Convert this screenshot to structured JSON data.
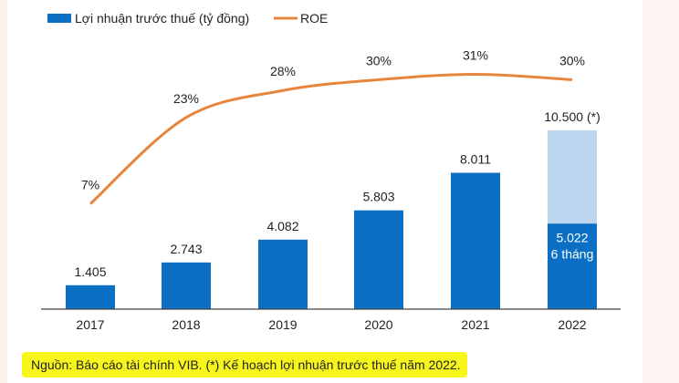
{
  "chart_data": {
    "type": "bar+line",
    "categories": [
      "2017",
      "2018",
      "2019",
      "2020",
      "2021",
      "2022"
    ],
    "series": [
      {
        "name": "Lợi nhuận trước thuế (tỷ đồng)",
        "kind": "bar",
        "color": "#0b6fc4",
        "values": [
          1405,
          2743,
          4082,
          5803,
          8011,
          5022
        ],
        "labels": [
          "1.405",
          "2.743",
          "4.082",
          "5.803",
          "8.011",
          "5.022"
        ]
      },
      {
        "name": "ROE",
        "kind": "line",
        "color": "#e8853c",
        "values": [
          7,
          23,
          28,
          30,
          31,
          30
        ],
        "labels": [
          "7%",
          "23%",
          "28%",
          "30%",
          "31%",
          "30%"
        ]
      }
    ],
    "plan_2022": {
      "value": 10500,
      "label": "10.500 (*)",
      "color": "#bcd6ef"
    },
    "partial_note": "6 tháng",
    "legend": {
      "position": "top-left"
    }
  },
  "footnote": "Nguồn: Báo cáo tài chính VIB. (*) Kế hoạch lợi nhuận trước thuế năm 2022."
}
